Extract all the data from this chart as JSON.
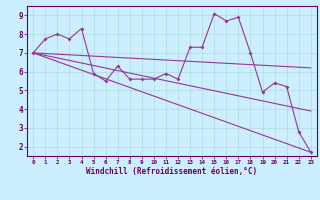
{
  "xlabel": "Windchill (Refroidissement éolien,°C)",
  "bg_color": "#cceeff",
  "line_color": "#993399",
  "grid_color": "#aadddd",
  "xlim": [
    -0.5,
    23.5
  ],
  "ylim": [
    1.5,
    9.5
  ],
  "yticks": [
    2,
    3,
    4,
    5,
    6,
    7,
    8,
    9
  ],
  "xticks": [
    0,
    1,
    2,
    3,
    4,
    5,
    6,
    7,
    8,
    9,
    10,
    11,
    12,
    13,
    14,
    15,
    16,
    17,
    18,
    19,
    20,
    21,
    22,
    23
  ],
  "series1_x": [
    0,
    1,
    2,
    3,
    4,
    5,
    6,
    7,
    8,
    9,
    10,
    11,
    12,
    13,
    14,
    15,
    16,
    17,
    18,
    19,
    20,
    21,
    22,
    23
  ],
  "series1_y": [
    7.0,
    7.75,
    8.0,
    7.75,
    8.3,
    5.9,
    5.5,
    6.3,
    5.6,
    5.6,
    5.6,
    5.9,
    5.6,
    7.3,
    7.3,
    9.1,
    8.7,
    8.9,
    7.0,
    4.9,
    5.4,
    5.2,
    2.8,
    1.7
  ],
  "series2_x": [
    0,
    23
  ],
  "series2_y": [
    7.0,
    6.2
  ],
  "series3_x": [
    0,
    23
  ],
  "series3_y": [
    7.0,
    1.7
  ],
  "series4_x": [
    0,
    23
  ],
  "series4_y": [
    7.0,
    3.9
  ]
}
